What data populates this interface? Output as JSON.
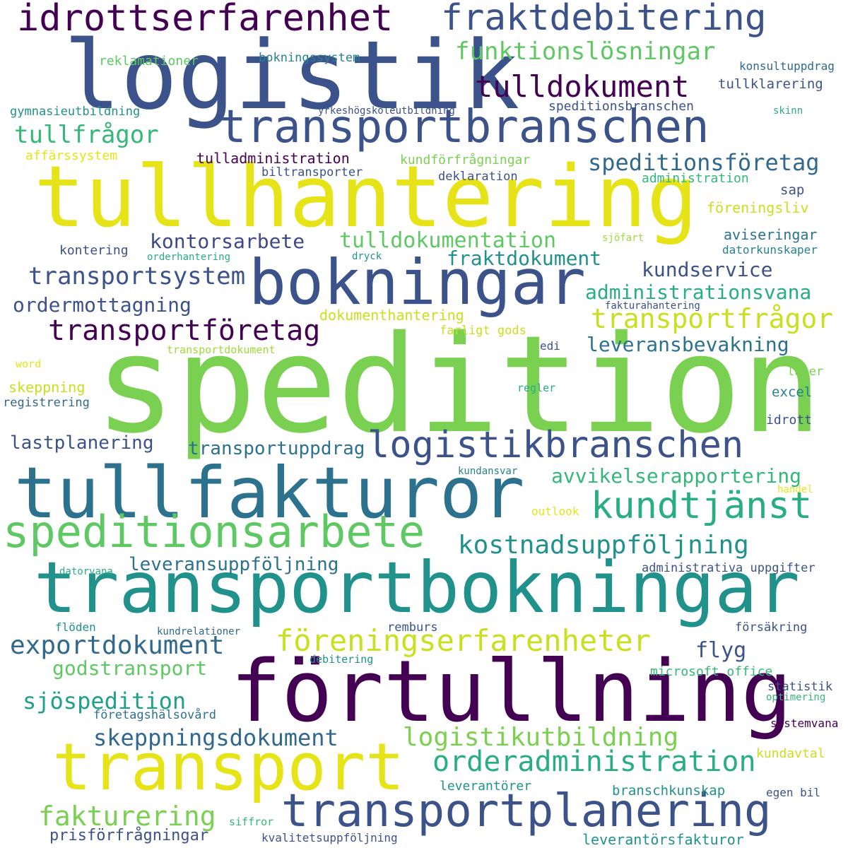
{
  "words": [
    {
      "text": "spedition",
      "color": "#7ad151"
    },
    {
      "text": "logistik",
      "color": "#3b528b"
    },
    {
      "text": "tullhantering",
      "color": "#e6e419"
    },
    {
      "text": "förtullning",
      "color": "#440154"
    },
    {
      "text": "transportbokningar",
      "color": "#21918c"
    },
    {
      "text": "tullfakturor",
      "color": "#2c728e"
    },
    {
      "text": "transport",
      "color": "#e6e419"
    },
    {
      "text": "bokningar",
      "color": "#3b528b"
    },
    {
      "text": "transportbranschen",
      "color": "#3b528b"
    },
    {
      "text": "transportplanering",
      "color": "#3b528b"
    },
    {
      "text": "idrottserfarenhet",
      "color": "#440154"
    },
    {
      "text": "fraktdebitering",
      "color": "#3b528b"
    },
    {
      "text": "speditionsarbete",
      "color": "#5ec962"
    },
    {
      "text": "logistikbranschen",
      "color": "#3b528b"
    },
    {
      "text": "kundtjänst",
      "color": "#28ae80"
    },
    {
      "text": "föreningserfarenheter",
      "color": "#c8e020"
    },
    {
      "text": "orderadministration",
      "color": "#28ae80"
    },
    {
      "text": "funktionslösningar",
      "color": "#5ec962"
    },
    {
      "text": "tulldokument",
      "color": "#440154"
    },
    {
      "text": "tullfrågor",
      "color": "#35b779"
    },
    {
      "text": "speditionsföretag",
      "color": "#31688e"
    },
    {
      "text": "transportföretag",
      "color": "#440154"
    },
    {
      "text": "transportfrågor",
      "color": "#c8e020"
    },
    {
      "text": "exportdokument",
      "color": "#31688e"
    },
    {
      "text": "logistikutbildning",
      "color": "#7ad151"
    },
    {
      "text": "skeppningsdokument",
      "color": "#31688e"
    },
    {
      "text": "kostnadsuppföljning",
      "color": "#21918c"
    },
    {
      "text": "fakturering",
      "color": "#7ad151"
    },
    {
      "text": "transportsystem",
      "color": "#3b528b"
    },
    {
      "text": "ordermottagning",
      "color": "#3b528b"
    },
    {
      "text": "kontorsarbete",
      "color": "#3e4989"
    },
    {
      "text": "tulldokumentation",
      "color": "#5ec962"
    },
    {
      "text": "fraktdokument",
      "color": "#21918c"
    },
    {
      "text": "kundservice",
      "color": "#3b528b"
    },
    {
      "text": "administrationsvana",
      "color": "#28ae80"
    },
    {
      "text": "leveransbevakning",
      "color": "#2c728e"
    },
    {
      "text": "avvikelserapportering",
      "color": "#35b779"
    },
    {
      "text": "leveransuppföljning",
      "color": "#2c728e"
    },
    {
      "text": "godstransport",
      "color": "#5ec962"
    },
    {
      "text": "sjöspedition",
      "color": "#1fa088"
    },
    {
      "text": "transportuppdrag",
      "color": "#2c728e"
    },
    {
      "text": "lastplanering",
      "color": "#3b528b"
    },
    {
      "text": "flyg",
      "color": "#3b528b"
    },
    {
      "text": "prisförfrågningar",
      "color": "#3b528b"
    },
    {
      "text": "leverantörsfakturor",
      "color": "#21918c"
    },
    {
      "text": "reklamationer",
      "color": "#5ec962"
    },
    {
      "text": "bokningssystem",
      "color": "#26828e"
    },
    {
      "text": "konsultuppdrag",
      "color": "#31688e"
    },
    {
      "text": "tullklarering",
      "color": "#3b528b"
    },
    {
      "text": "gymnasieutbildning",
      "color": "#21918c"
    },
    {
      "text": "yrkeshögskoleutbildning",
      "color": "#3b528b"
    },
    {
      "text": "speditionsbranschen",
      "color": "#3b528b"
    },
    {
      "text": "skinn",
      "color": "#28ae80"
    },
    {
      "text": "affärssystem",
      "color": "#e6e419"
    },
    {
      "text": "tulladministration",
      "color": "#440154"
    },
    {
      "text": "kundförfrågningar",
      "color": "#7ad151"
    },
    {
      "text": "biltransporter",
      "color": "#3b528b"
    },
    {
      "text": "deklaration",
      "color": "#3b528b"
    },
    {
      "text": "administration",
      "color": "#35b779"
    },
    {
      "text": "sap",
      "color": "#3b528b"
    },
    {
      "text": "föreningsliv",
      "color": "#c8e020"
    },
    {
      "text": "sjöfart",
      "color": "#a0da39"
    },
    {
      "text": "aviseringar",
      "color": "#2c728e"
    },
    {
      "text": "kontering",
      "color": "#3b528b"
    },
    {
      "text": "orderhantering",
      "color": "#28ae80"
    },
    {
      "text": "dryck",
      "color": "#21918c"
    },
    {
      "text": "datorkunskaper",
      "color": "#26828e"
    },
    {
      "text": "fakturahantering",
      "color": "#3b528b"
    },
    {
      "text": "dokumenthantering",
      "color": "#c8e020"
    },
    {
      "text": "farligt gods",
      "color": "#c8e020"
    },
    {
      "text": "edi",
      "color": "#3b528b"
    },
    {
      "text": "transportdokument",
      "color": "#a0da39"
    },
    {
      "text": "word",
      "color": "#e6e419"
    },
    {
      "text": "lager",
      "color": "#7ad151"
    },
    {
      "text": "skeppning",
      "color": "#c8e020"
    },
    {
      "text": "regler",
      "color": "#28ae80"
    },
    {
      "text": "excel",
      "color": "#26828e"
    },
    {
      "text": "registrering",
      "color": "#31688e"
    },
    {
      "text": "idrott",
      "color": "#3b528b"
    },
    {
      "text": "kundansvar",
      "color": "#26828e"
    },
    {
      "text": "handel",
      "color": "#e6e419"
    },
    {
      "text": "outlook",
      "color": "#e6e419"
    },
    {
      "text": "datorvana",
      "color": "#28ae80"
    },
    {
      "text": "administrativa uppgifter",
      "color": "#3b528b"
    },
    {
      "text": "flöden",
      "color": "#21918c"
    },
    {
      "text": "kundrelationer",
      "color": "#31688e"
    },
    {
      "text": "remburs",
      "color": "#3b528b"
    },
    {
      "text": "försäkring",
      "color": "#3b528b"
    },
    {
      "text": "debitering",
      "color": "#21918c"
    },
    {
      "text": "microsoft office",
      "color": "#35b779"
    },
    {
      "text": "statistik",
      "color": "#3b528b"
    },
    {
      "text": "optimering",
      "color": "#35b779"
    },
    {
      "text": "företagshälsovård",
      "color": "#2c728e"
    },
    {
      "text": "systemvana",
      "color": "#440154"
    },
    {
      "text": "kundavtal",
      "color": "#c8e020"
    },
    {
      "text": "leverantörer",
      "color": "#21918c"
    },
    {
      "text": "branschkunskap",
      "color": "#21918c"
    },
    {
      "text": "egen bil",
      "color": "#3b528b"
    },
    {
      "text": "siffror",
      "color": "#35b779"
    },
    {
      "text": "kvalitetsuppföljning",
      "color": "#3b528b"
    }
  ]
}
